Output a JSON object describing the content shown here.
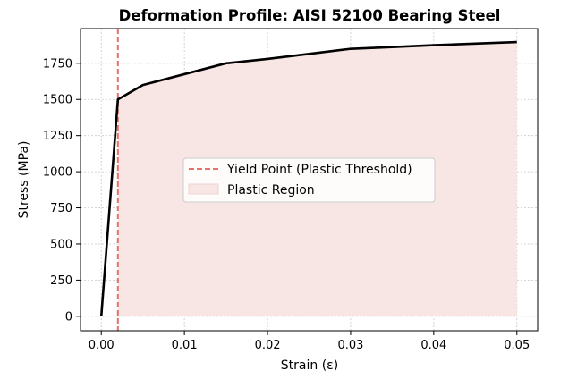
{
  "chart_data": {
    "type": "line",
    "title": "Deformation Profile: AISI 52100 Bearing Steel",
    "xlabel": "Strain (ε)",
    "ylabel": "Stress (MPa)",
    "xlim": [
      -0.0025,
      0.0525
    ],
    "ylim": [
      -100,
      1990
    ],
    "xticks": [
      0.0,
      0.01,
      0.02,
      0.03,
      0.04,
      0.05
    ],
    "xtick_labels": [
      "0.00",
      "0.01",
      "0.02",
      "0.03",
      "0.04",
      "0.05"
    ],
    "yticks": [
      0,
      250,
      500,
      750,
      1000,
      1250,
      1500,
      1750
    ],
    "ytick_labels": [
      "0",
      "250",
      "500",
      "750",
      "1000",
      "1250",
      "1500",
      "1750"
    ],
    "grid": true,
    "legend_position": "center-right",
    "series": [
      {
        "kind": "line",
        "color": "#000000",
        "x": [
          0.0,
          0.002,
          0.005,
          0.01,
          0.015,
          0.02,
          0.025,
          0.03,
          0.035,
          0.04,
          0.045,
          0.05
        ],
        "y": [
          0,
          1500,
          1600,
          1675,
          1750,
          1780,
          1815,
          1850,
          1862,
          1875,
          1886,
          1897
        ]
      },
      {
        "kind": "vline",
        "name": "Yield Point (Plastic Threshold)",
        "color": "#e8706a",
        "x": 0.002
      },
      {
        "kind": "fill",
        "name": "Plastic Region",
        "color": "#f7e6e3",
        "x_start": 0.002
      }
    ]
  }
}
